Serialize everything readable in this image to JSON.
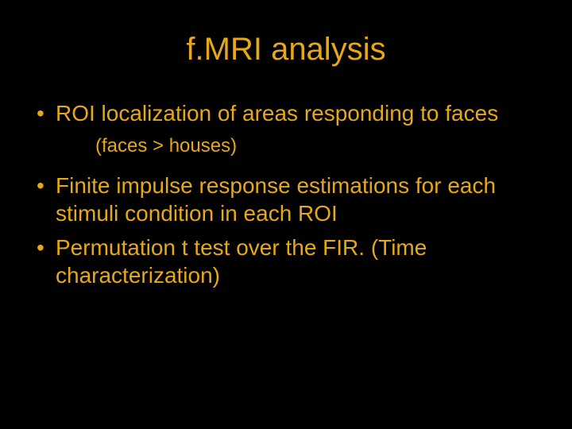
{
  "colors": {
    "background": "#000000",
    "text": "#e6a817"
  },
  "title": "f.MRI analysis",
  "bullets": [
    "ROI localization of areas responding to faces",
    "Finite impulse response estimations for each stimuli condition in each ROI",
    "Permutation t test over the FIR. (Time characterization)"
  ],
  "sub_note": "(faces > houses)",
  "typography": {
    "title_fontsize": 40,
    "bullet_fontsize": 28,
    "subnote_fontsize": 24,
    "font_family": "Arial"
  }
}
